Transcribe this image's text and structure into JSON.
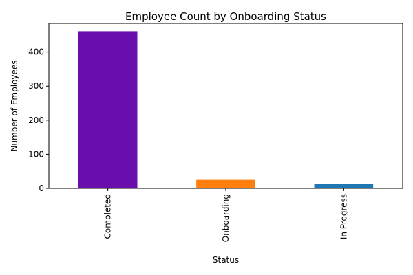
{
  "chart_data": {
    "type": "bar",
    "title": "Employee Count by Onboarding Status",
    "xlabel": "Status",
    "ylabel": "Number of Employees",
    "categories": [
      "Completed",
      "Onboarding",
      "In Progress"
    ],
    "values": [
      461,
      25,
      13
    ],
    "colors": [
      "#6a0dad",
      "#ff7f0e",
      "#1f77b4"
    ],
    "ylim": [
      0,
      484
    ],
    "yticks": [
      0,
      100,
      200,
      300,
      400
    ],
    "grid": false,
    "legend": "none"
  }
}
